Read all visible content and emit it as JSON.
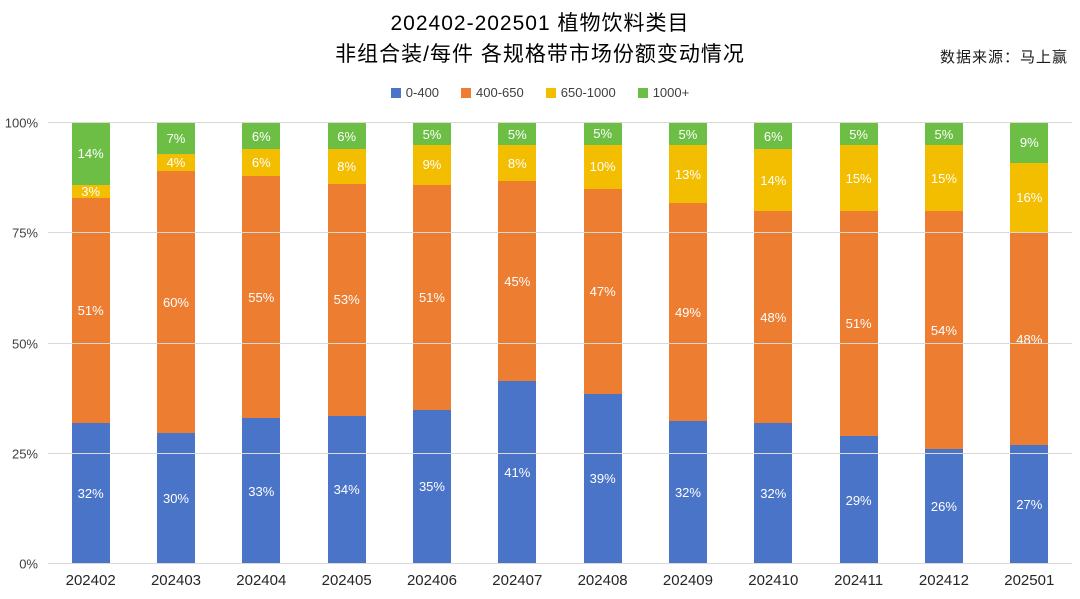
{
  "chart_data": {
    "type": "bar",
    "stacked": "100%",
    "title_lines": [
      "202402-202501 植物饮料类目",
      "非组合装/每件 各规格带市场份额变动情况"
    ],
    "source_note": "数据来源：马上赢",
    "categories": [
      "202402",
      "202403",
      "202404",
      "202405",
      "202406",
      "202407",
      "202408",
      "202409",
      "202410",
      "202411",
      "202412",
      "202501"
    ],
    "series": [
      {
        "name": "0-400",
        "color": "#4a74c8",
        "values": [
          32,
          30,
          33,
          34,
          35,
          41,
          39,
          32,
          32,
          29,
          26,
          27
        ]
      },
      {
        "name": "400-650",
        "color": "#ed7d31",
        "values": [
          51,
          60,
          55,
          53,
          51,
          45,
          47,
          49,
          48,
          51,
          54,
          48
        ]
      },
      {
        "name": "650-1000",
        "color": "#f3bd00",
        "values": [
          3,
          4,
          6,
          8,
          9,
          8,
          10,
          13,
          14,
          15,
          15,
          16
        ]
      },
      {
        "name": "1000+",
        "color": "#6cbe45",
        "values": [
          14,
          7,
          6,
          6,
          5,
          5,
          5,
          5,
          6,
          5,
          5,
          9
        ]
      }
    ],
    "y_ticks": [
      "0%",
      "25%",
      "50%",
      "75%",
      "100%"
    ],
    "ylim": [
      0,
      100
    ],
    "value_label_suffix": "%",
    "legend_position": "top",
    "grid": true,
    "gridline_color": "#d9d9d9"
  }
}
